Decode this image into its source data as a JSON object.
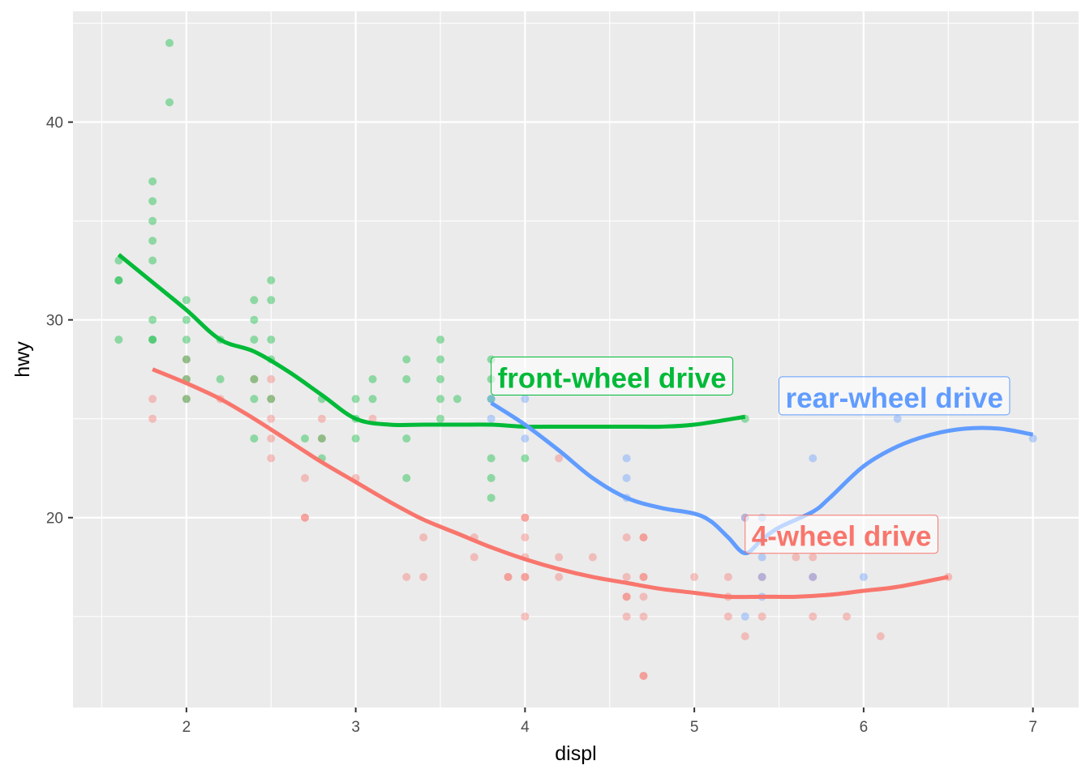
{
  "chart_data": {
    "type": "scatter",
    "title": "",
    "xlabel": "displ",
    "ylabel": "hwy",
    "xlim": [
      1.33,
      7.27
    ],
    "ylim": [
      10.4,
      45.6
    ],
    "x_ticks": [
      2,
      3,
      4,
      5,
      6,
      7
    ],
    "y_ticks": [
      20,
      30,
      40
    ],
    "grid": true,
    "legend": "none",
    "series": [
      {
        "key": "4",
        "color": "#F8766D",
        "points": [
          [
            1.8,
            26
          ],
          [
            1.8,
            25
          ],
          [
            2.0,
            28
          ],
          [
            2.0,
            27
          ],
          [
            2.0,
            26
          ],
          [
            2.2,
            26
          ],
          [
            2.4,
            27
          ],
          [
            2.5,
            27
          ],
          [
            2.5,
            26
          ],
          [
            2.5,
            25
          ],
          [
            2.5,
            24
          ],
          [
            2.5,
            23
          ],
          [
            2.7,
            22
          ],
          [
            2.7,
            20
          ],
          [
            2.7,
            20
          ],
          [
            2.8,
            25
          ],
          [
            2.8,
            24
          ],
          [
            3.0,
            22
          ],
          [
            3.1,
            25
          ],
          [
            3.3,
            17
          ],
          [
            3.4,
            19
          ],
          [
            3.4,
            17
          ],
          [
            3.7,
            19
          ],
          [
            3.7,
            18
          ],
          [
            3.9,
            17
          ],
          [
            3.9,
            17
          ],
          [
            4.0,
            20
          ],
          [
            4.0,
            20
          ],
          [
            4.0,
            19
          ],
          [
            4.0,
            18
          ],
          [
            4.0,
            17
          ],
          [
            4.0,
            17
          ],
          [
            4.0,
            15
          ],
          [
            4.2,
            23
          ],
          [
            4.2,
            18
          ],
          [
            4.2,
            17
          ],
          [
            4.4,
            18
          ],
          [
            4.6,
            19
          ],
          [
            4.6,
            17
          ],
          [
            4.6,
            16
          ],
          [
            4.6,
            16
          ],
          [
            4.6,
            15
          ],
          [
            4.7,
            19
          ],
          [
            4.7,
            19
          ],
          [
            4.7,
            17
          ],
          [
            4.7,
            17
          ],
          [
            4.7,
            16
          ],
          [
            4.7,
            15
          ],
          [
            4.7,
            12
          ],
          [
            4.7,
            12
          ],
          [
            5.0,
            17
          ],
          [
            5.2,
            17
          ],
          [
            5.2,
            16
          ],
          [
            5.2,
            15
          ],
          [
            5.3,
            20
          ],
          [
            5.3,
            14
          ],
          [
            5.4,
            17
          ],
          [
            5.4,
            15
          ],
          [
            5.6,
            18
          ],
          [
            5.7,
            18
          ],
          [
            5.7,
            17
          ],
          [
            5.7,
            15
          ],
          [
            5.9,
            15
          ],
          [
            6.1,
            14
          ],
          [
            6.5,
            17
          ]
        ],
        "smooth": [
          [
            1.8,
            27.5
          ],
          [
            2.0,
            26.8
          ],
          [
            2.2,
            26.0
          ],
          [
            2.4,
            25.0
          ],
          [
            2.6,
            23.9
          ],
          [
            2.8,
            22.8
          ],
          [
            3.0,
            21.8
          ],
          [
            3.2,
            20.8
          ],
          [
            3.4,
            19.9
          ],
          [
            3.6,
            19.2
          ],
          [
            3.8,
            18.5
          ],
          [
            4.0,
            17.9
          ],
          [
            4.2,
            17.4
          ],
          [
            4.4,
            17.0
          ],
          [
            4.6,
            16.7
          ],
          [
            4.8,
            16.4
          ],
          [
            5.0,
            16.2
          ],
          [
            5.2,
            16.0
          ],
          [
            5.4,
            16.0
          ],
          [
            5.6,
            16.0
          ],
          [
            5.8,
            16.1
          ],
          [
            6.0,
            16.3
          ],
          [
            6.2,
            16.5
          ],
          [
            6.5,
            17.0
          ]
        ],
        "label": "4-wheel drive",
        "label_at": [
          5.3,
          19.1
        ]
      },
      {
        "key": "f",
        "color": "#00BA38",
        "points": [
          [
            1.6,
            33
          ],
          [
            1.6,
            32
          ],
          [
            1.6,
            32
          ],
          [
            1.6,
            29
          ],
          [
            1.8,
            37
          ],
          [
            1.8,
            36
          ],
          [
            1.8,
            35
          ],
          [
            1.8,
            34
          ],
          [
            1.8,
            33
          ],
          [
            1.8,
            30
          ],
          [
            1.8,
            29
          ],
          [
            1.8,
            29
          ],
          [
            1.9,
            44
          ],
          [
            1.9,
            41
          ],
          [
            2.0,
            31
          ],
          [
            2.0,
            30
          ],
          [
            2.0,
            29
          ],
          [
            2.0,
            28
          ],
          [
            2.0,
            27
          ],
          [
            2.0,
            26
          ],
          [
            2.2,
            29
          ],
          [
            2.2,
            27
          ],
          [
            2.4,
            31
          ],
          [
            2.4,
            30
          ],
          [
            2.4,
            29
          ],
          [
            2.4,
            27
          ],
          [
            2.4,
            26
          ],
          [
            2.4,
            24
          ],
          [
            2.5,
            32
          ],
          [
            2.5,
            31
          ],
          [
            2.5,
            29
          ],
          [
            2.5,
            28
          ],
          [
            2.5,
            26
          ],
          [
            2.7,
            24
          ],
          [
            2.8,
            26
          ],
          [
            2.8,
            24
          ],
          [
            2.8,
            23
          ],
          [
            3.0,
            26
          ],
          [
            3.0,
            25
          ],
          [
            3.0,
            24
          ],
          [
            3.1,
            27
          ],
          [
            3.1,
            26
          ],
          [
            3.3,
            28
          ],
          [
            3.3,
            27
          ],
          [
            3.3,
            24
          ],
          [
            3.3,
            22
          ],
          [
            3.5,
            29
          ],
          [
            3.5,
            28
          ],
          [
            3.5,
            27
          ],
          [
            3.5,
            26
          ],
          [
            3.5,
            25
          ],
          [
            3.6,
            26
          ],
          [
            3.8,
            28
          ],
          [
            3.8,
            27
          ],
          [
            3.8,
            26
          ],
          [
            3.8,
            23
          ],
          [
            3.8,
            22
          ],
          [
            3.8,
            21
          ],
          [
            4.0,
            23
          ],
          [
            5.3,
            25
          ]
        ],
        "smooth": [
          [
            1.6,
            33.3
          ],
          [
            1.8,
            31.9
          ],
          [
            2.0,
            30.5
          ],
          [
            2.2,
            29.0
          ],
          [
            2.4,
            28.4
          ],
          [
            2.6,
            27.4
          ],
          [
            2.8,
            26.2
          ],
          [
            3.0,
            25.0
          ],
          [
            3.2,
            24.7
          ],
          [
            3.4,
            24.7
          ],
          [
            3.6,
            24.7
          ],
          [
            3.8,
            24.7
          ],
          [
            4.0,
            24.6
          ],
          [
            4.2,
            24.6
          ],
          [
            4.4,
            24.6
          ],
          [
            4.6,
            24.6
          ],
          [
            4.8,
            24.6
          ],
          [
            5.0,
            24.7
          ],
          [
            5.3,
            25.1
          ]
        ],
        "label": "front-wheel drive",
        "label_at": [
          3.8,
          27.1
        ]
      },
      {
        "key": "r",
        "color": "#619CFF",
        "points": [
          [
            3.8,
            26
          ],
          [
            3.8,
            25
          ],
          [
            4.0,
            26
          ],
          [
            4.0,
            24
          ],
          [
            4.6,
            23
          ],
          [
            4.6,
            22
          ],
          [
            4.6,
            21
          ],
          [
            5.3,
            20
          ],
          [
            5.3,
            15
          ],
          [
            5.4,
            20
          ],
          [
            5.4,
            19
          ],
          [
            5.4,
            18
          ],
          [
            5.4,
            17
          ],
          [
            5.4,
            16
          ],
          [
            5.7,
            23
          ],
          [
            5.7,
            17
          ],
          [
            6.0,
            17
          ],
          [
            6.2,
            25
          ],
          [
            7.0,
            24
          ]
        ],
        "smooth": [
          [
            3.8,
            25.8
          ],
          [
            4.0,
            24.7
          ],
          [
            4.2,
            23.4
          ],
          [
            4.4,
            22.0
          ],
          [
            4.6,
            21.0
          ],
          [
            4.8,
            20.5
          ],
          [
            5.0,
            20.2
          ],
          [
            5.1,
            19.8
          ],
          [
            5.2,
            19.0
          ],
          [
            5.3,
            18.2
          ],
          [
            5.4,
            18.9
          ],
          [
            5.5,
            19.5
          ],
          [
            5.7,
            20.3
          ],
          [
            5.8,
            21.0
          ],
          [
            6.0,
            22.6
          ],
          [
            6.2,
            23.6
          ],
          [
            6.4,
            24.2
          ],
          [
            6.6,
            24.5
          ],
          [
            6.8,
            24.5
          ],
          [
            7.0,
            24.2
          ]
        ],
        "label": "rear-wheel drive",
        "label_at": [
          5.5,
          26.1
        ]
      }
    ]
  }
}
